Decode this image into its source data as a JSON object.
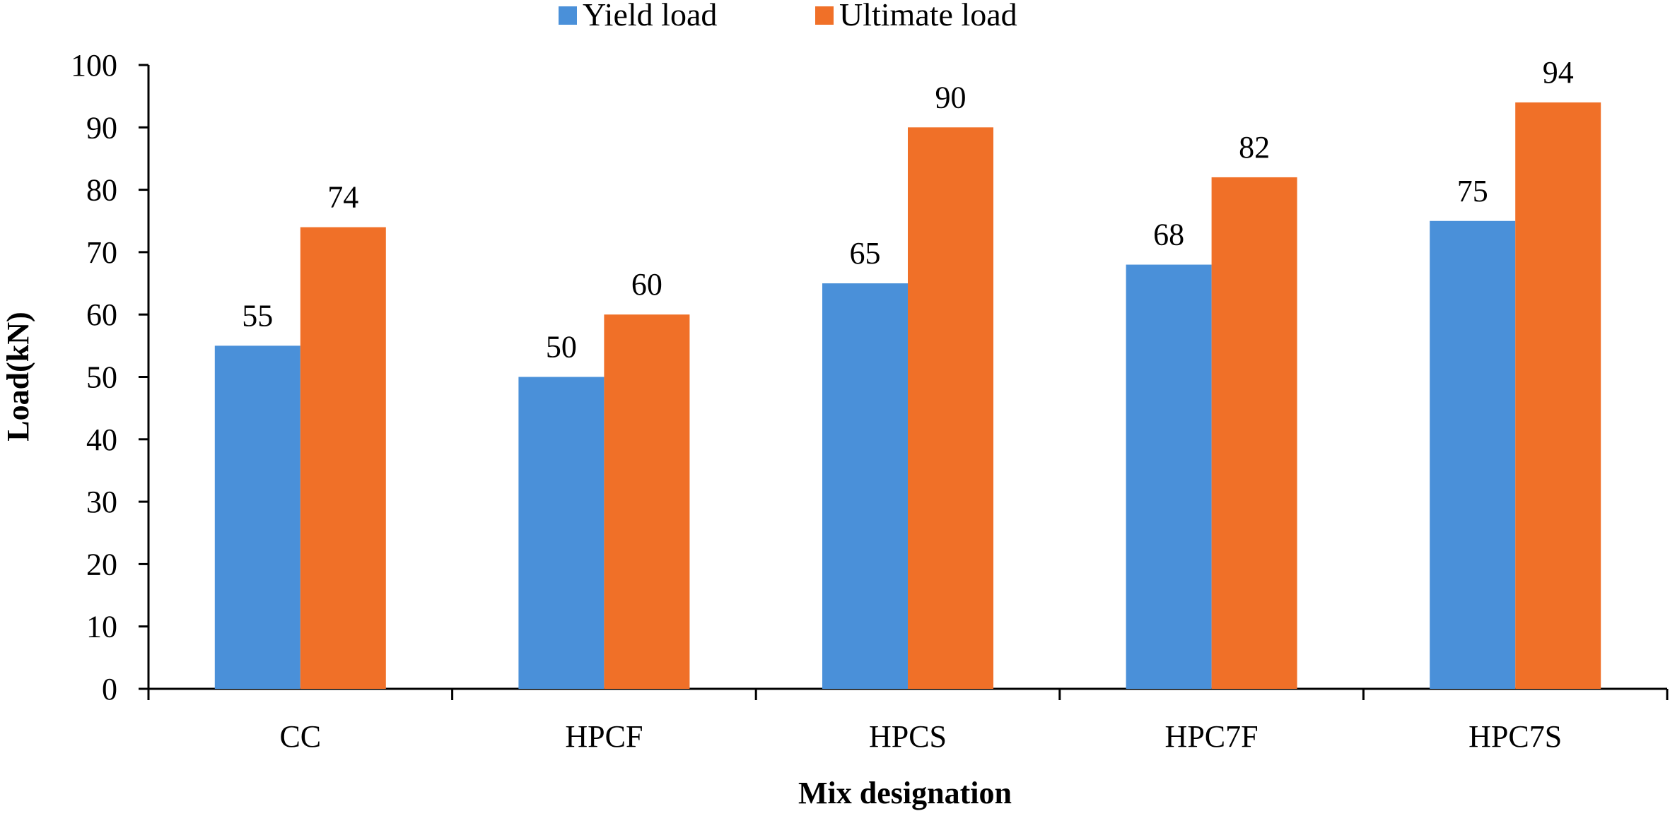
{
  "chart_data": {
    "type": "bar",
    "title": "",
    "xlabel": "Mix designation",
    "ylabel": "Load(kN)",
    "categories": [
      "CC",
      "HPCF",
      "HPCS",
      "HPC7F",
      "HPC7S"
    ],
    "series": [
      {
        "name": "Yield load",
        "values": [
          55,
          50,
          65,
          68,
          75
        ],
        "color": "#4a90d9"
      },
      {
        "name": "Ultimate load",
        "values": [
          74,
          60,
          90,
          82,
          94
        ],
        "color": "#f07028"
      }
    ],
    "ylim": [
      0,
      100
    ],
    "yticks": [
      0,
      10,
      20,
      30,
      40,
      50,
      60,
      70,
      80,
      90,
      100
    ],
    "grid": false,
    "legend_position": "top-center",
    "data_labels": true
  }
}
